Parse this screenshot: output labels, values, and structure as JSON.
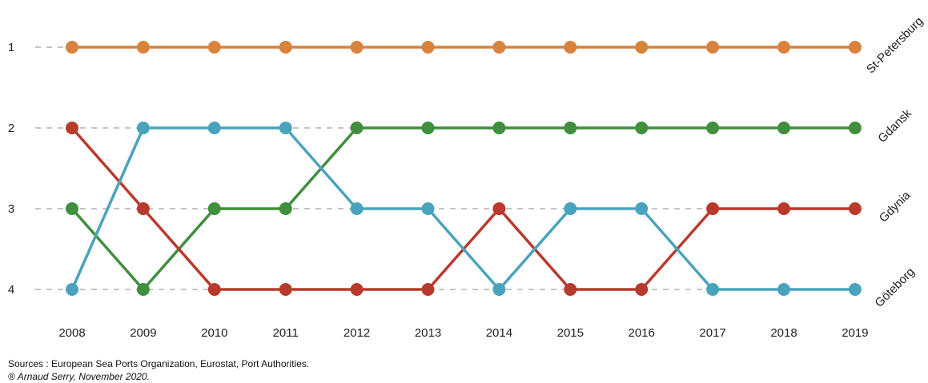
{
  "chart_data": {
    "type": "line",
    "subtype": "bump",
    "x": [
      "2008",
      "2009",
      "2010",
      "2011",
      "2012",
      "2013",
      "2014",
      "2015",
      "2016",
      "2017",
      "2018",
      "2019"
    ],
    "y_ticks": [
      "1",
      "2",
      "3",
      "4"
    ],
    "ylim": [
      1,
      4
    ],
    "y_inverted": true,
    "grid": "dashed horizontal",
    "legend": "labels at right end of lines",
    "series": [
      {
        "name": "St-Petersburg",
        "color": "#d9823b",
        "values": [
          1,
          1,
          1,
          1,
          1,
          1,
          1,
          1,
          1,
          1,
          1,
          1
        ]
      },
      {
        "name": "Gdansk",
        "color": "#3f8f3c",
        "values": [
          3,
          4,
          3,
          3,
          2,
          2,
          2,
          2,
          2,
          2,
          2,
          2
        ]
      },
      {
        "name": "Gdynia",
        "color": "#b83a2c",
        "values": [
          2,
          3,
          4,
          4,
          4,
          4,
          3,
          4,
          4,
          3,
          3,
          3
        ]
      },
      {
        "name": "Göteborg",
        "color": "#4aa3bd",
        "values": [
          4,
          2,
          2,
          2,
          3,
          3,
          4,
          3,
          3,
          4,
          4,
          4
        ]
      }
    ]
  },
  "footer": {
    "source": "Sources : European Sea Ports Organization, Eurostat, Port Authorities.",
    "credit": "® Arnaud Serry, November 2020."
  }
}
